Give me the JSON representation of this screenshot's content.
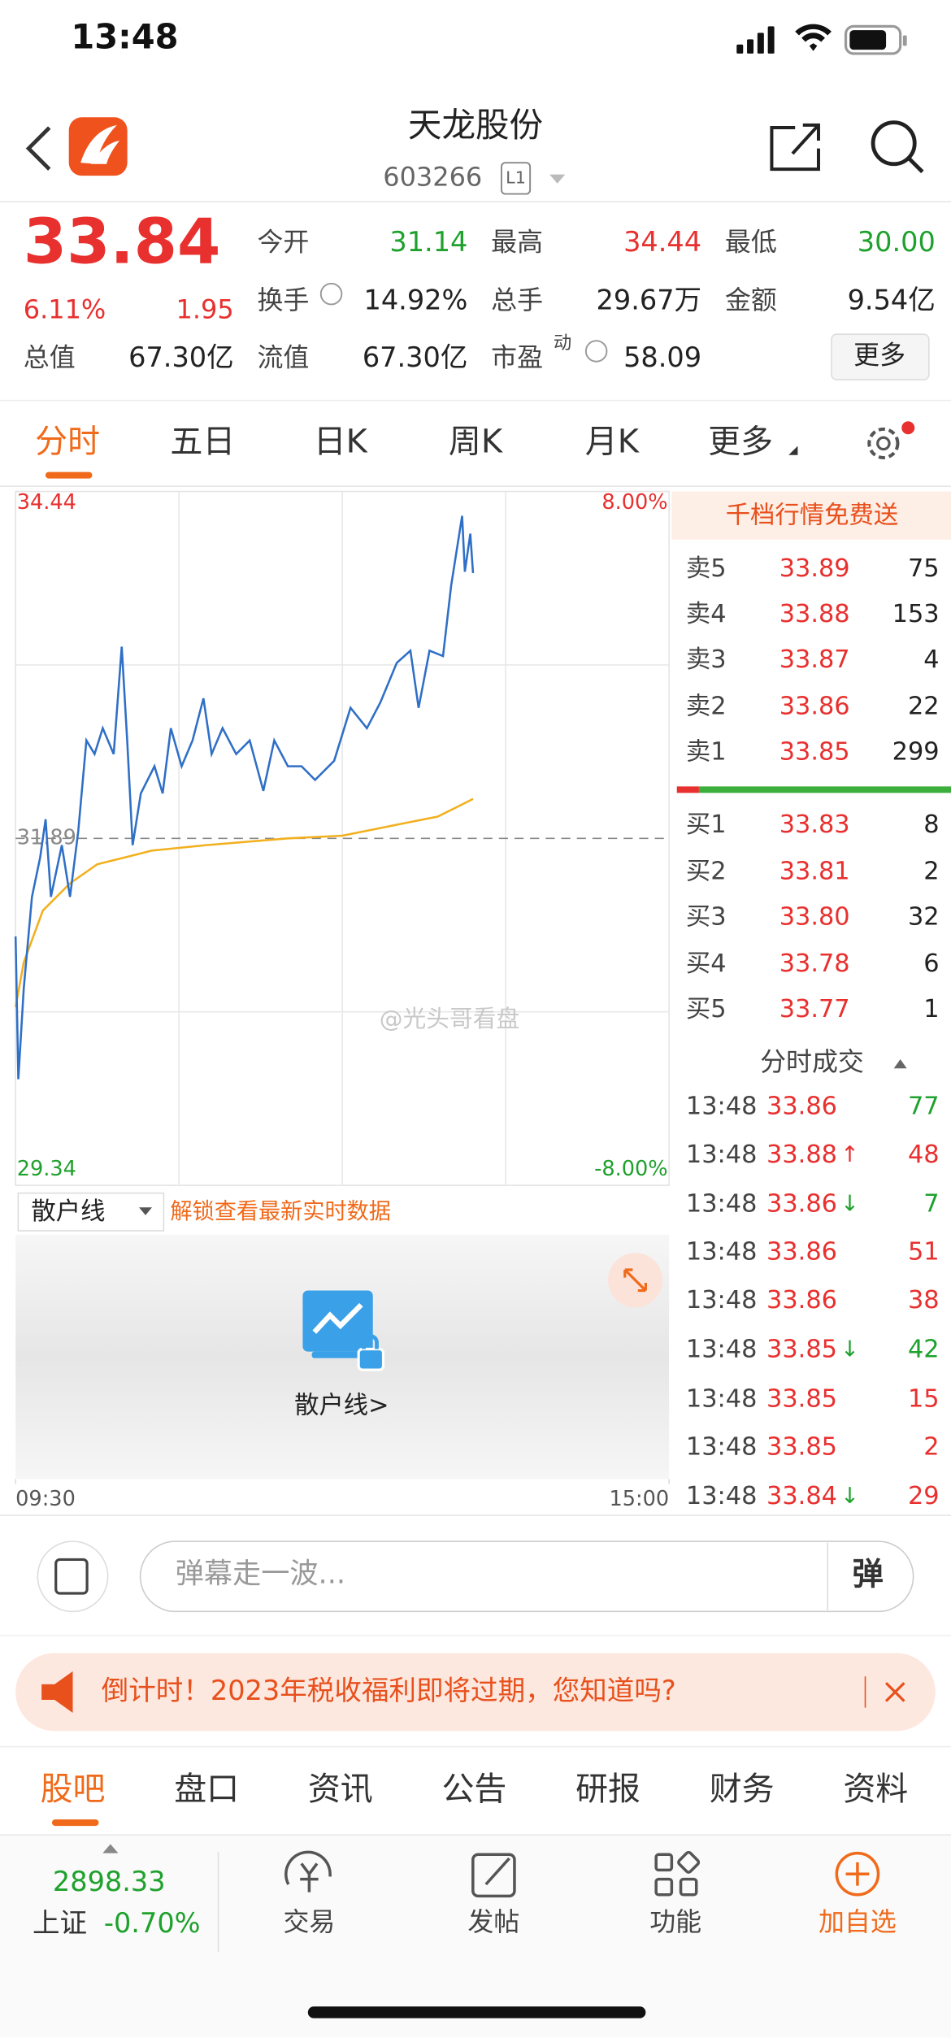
{
  "status_bar": {
    "time": "13:48"
  },
  "header": {
    "title": "天龙股份",
    "code": "603266",
    "level": "L1"
  },
  "quote": {
    "price": "33.84",
    "change_pct": "6.11%",
    "change": "1.95",
    "fields": [
      {
        "label": "今开",
        "value": "31.14"
      },
      {
        "label": "最高",
        "value": "34.44"
      },
      {
        "label": "最低",
        "value": "30.00"
      },
      {
        "label": "换手",
        "value": "14.92%"
      },
      {
        "label": "总手",
        "value": "29.67万"
      },
      {
        "label": "金额",
        "value": "9.54亿"
      },
      {
        "label": "总值",
        "value": "67.30亿"
      },
      {
        "label": "流值",
        "value": "67.30亿"
      },
      {
        "label": "市盈",
        "sup": "动",
        "value": "58.09"
      }
    ],
    "more": "更多"
  },
  "tabs": [
    "分时",
    "五日",
    "日K",
    "周K",
    "月K",
    "更多"
  ],
  "chart_data": {
    "type": "line",
    "xlim": [
      0,
      240
    ],
    "xticks": [
      {
        "value": 0,
        "label": "09:30"
      },
      {
        "value": 240,
        "label": "15:00"
      }
    ],
    "ylim": [
      29.34,
      34.44
    ],
    "yticks": [
      34.44,
      31.89,
      29.34
    ],
    "y2lim": [
      -8,
      8
    ],
    "y2ticks": [
      {
        "value": 8,
        "label": "8.00%"
      },
      {
        "value": -8,
        "label": "-8.00%"
      }
    ],
    "grid": true,
    "series": [
      {
        "color": "#2f6fc6",
        "x": [
          0,
          1,
          3,
          6,
          9,
          11,
          13,
          17,
          20,
          23,
          26,
          29,
          32,
          36,
          39,
          41,
          43,
          46,
          51,
          54,
          57,
          61,
          65,
          69,
          72,
          76,
          81,
          86,
          91,
          95,
          100,
          105,
          110,
          117,
          123,
          129,
          134,
          140,
          145,
          148,
          152,
          157,
          160,
          164,
          165,
          167,
          168
        ],
        "values": [
          31.17,
          30.12,
          30.79,
          31.46,
          31.75,
          32.03,
          31.46,
          31.84,
          31.46,
          31.94,
          32.61,
          32.51,
          32.7,
          32.51,
          33.3,
          32.61,
          31.84,
          32.22,
          32.42,
          32.22,
          32.7,
          32.42,
          32.61,
          32.92,
          32.51,
          32.7,
          32.51,
          32.61,
          32.24,
          32.61,
          32.42,
          32.42,
          32.32,
          32.46,
          32.85,
          32.7,
          32.89,
          33.18,
          33.27,
          32.85,
          33.27,
          33.23,
          33.75,
          34.26,
          33.85,
          34.13,
          33.84
        ]
      },
      {
        "color": "#f2b01e",
        "x": [
          0,
          3,
          10,
          20,
          30,
          40,
          50,
          70,
          100,
          120,
          140,
          155,
          163,
          168
        ],
        "values": [
          30.65,
          30.98,
          31.36,
          31.56,
          31.7,
          31.75,
          31.8,
          31.84,
          31.89,
          31.91,
          31.99,
          32.05,
          32.13,
          32.18
        ]
      }
    ]
  },
  "order_book": {
    "header": "千档行情免费送",
    "asks": [
      {
        "label": "卖5",
        "price": "33.89",
        "volume": "75"
      },
      {
        "label": "卖4",
        "price": "33.88",
        "volume": "153"
      },
      {
        "label": "卖3",
        "price": "33.87",
        "volume": "4"
      },
      {
        "label": "卖2",
        "price": "33.86",
        "volume": "22"
      },
      {
        "label": "卖1",
        "price": "33.85",
        "volume": "299"
      }
    ],
    "bids": [
      {
        "label": "买1",
        "price": "33.83",
        "volume": "8"
      },
      {
        "label": "买2",
        "price": "33.81",
        "volume": "2"
      },
      {
        "label": "买3",
        "price": "33.80",
        "volume": "32"
      },
      {
        "label": "买4",
        "price": "33.78",
        "volume": "6"
      },
      {
        "label": "买5",
        "price": "33.77",
        "volume": "1"
      }
    ]
  },
  "trades": {
    "title": "分时成交",
    "rows": [
      {
        "time": "13:48",
        "price": "33.86",
        "volume": "77",
        "side": "sell"
      },
      {
        "time": "13:48",
        "price": "33.88",
        "arrow": "↑",
        "volume": "48",
        "side": "buy"
      },
      {
        "time": "13:48",
        "price": "33.86",
        "arrow": "↓",
        "volume": "7",
        "side": "sell"
      },
      {
        "time": "13:48",
        "price": "33.86",
        "volume": "51",
        "side": "buy"
      },
      {
        "time": "13:48",
        "price": "33.86",
        "volume": "38",
        "side": "buy"
      },
      {
        "time": "13:48",
        "price": "33.85",
        "arrow": "↓",
        "volume": "42",
        "side": "sell"
      },
      {
        "time": "13:48",
        "price": "33.85",
        "volume": "15",
        "side": "buy"
      },
      {
        "time": "13:48",
        "price": "33.85",
        "volume": "2",
        "side": "buy"
      },
      {
        "time": "13:48",
        "price": "33.84",
        "arrow": "↓",
        "volume": "29",
        "side": "buy"
      }
    ]
  },
  "retail_line": {
    "dropdown": "散户线",
    "notice": "解锁查看最新实时数据",
    "cta": "散户线>"
  },
  "watermark": "@光头哥看盘",
  "comment": {
    "placeholder": "弹幕走一波...",
    "button": "弹"
  },
  "banner": {
    "text": "倒计时！2023年税收福利即将过期，您知道吗?"
  },
  "bottom_tabs": [
    "股吧",
    "盘口",
    "资讯",
    "公告",
    "研报",
    "财务",
    "资料"
  ],
  "index": {
    "value": "2898.33",
    "name": "上证",
    "change": "-0.70%"
  },
  "nav": [
    "交易",
    "发帖",
    "功能",
    "加自选"
  ]
}
